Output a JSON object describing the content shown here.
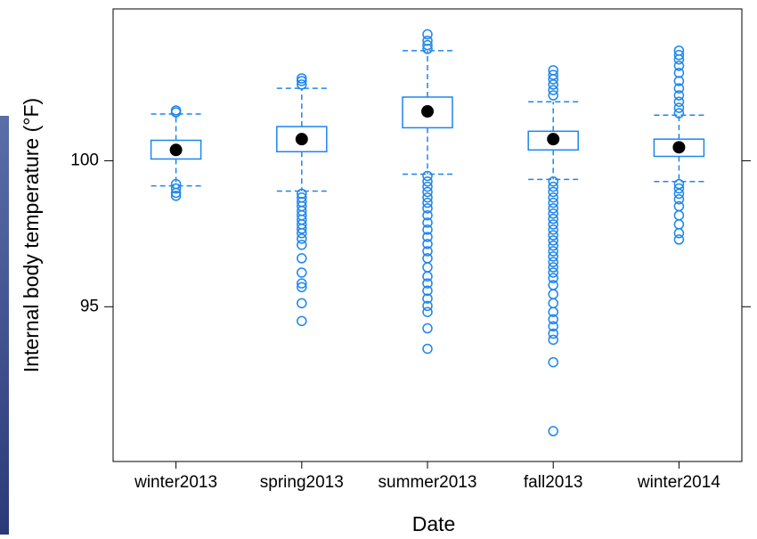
{
  "chart_data": {
    "type": "box",
    "x_label": "Date",
    "y_label": "Internal body temperature (°F)",
    "categories": [
      "winter2013",
      "spring2013",
      "summer2013",
      "fall2013",
      "winter2014"
    ],
    "color": "#1c86ee",
    "median_color": "#000000",
    "ylim": [
      89.7,
      105.2
    ],
    "yticks": [
      95,
      100
    ],
    "boxes": [
      {
        "whislo": 99.14,
        "q1": 100.06,
        "med": 100.37,
        "q3": 100.7,
        "whishi": 101.6,
        "fliers": [
          101.72,
          101.66,
          99.2,
          99.05,
          98.9,
          98.8
        ]
      },
      {
        "whislo": 98.96,
        "q1": 100.31,
        "med": 100.74,
        "q3": 101.17,
        "whishi": 102.48,
        "fliers": [
          102.82,
          102.73,
          102.61,
          98.87,
          98.74,
          98.59,
          98.44,
          98.28,
          98.13,
          97.98,
          97.82,
          97.67,
          97.52,
          97.33,
          97.12,
          96.66,
          96.17,
          95.8,
          95.67,
          95.12,
          94.51
        ]
      },
      {
        "whislo": 99.54,
        "q1": 101.13,
        "med": 101.69,
        "q3": 102.18,
        "whishi": 103.77,
        "fliers": [
          104.33,
          104.11,
          103.96,
          103.83,
          99.48,
          99.29,
          99.11,
          98.93,
          98.74,
          98.56,
          98.37,
          98.13,
          97.88,
          97.64,
          97.39,
          97.15,
          96.9,
          96.66,
          96.35,
          96.04,
          95.8,
          95.55,
          95.28,
          95.03,
          94.82,
          94.26,
          93.56
        ]
      },
      {
        "whislo": 99.36,
        "q1": 100.37,
        "med": 100.74,
        "q3": 101.01,
        "whishi": 102.02,
        "fliers": [
          103.1,
          102.94,
          102.79,
          102.61,
          102.42,
          102.24,
          99.29,
          99.11,
          98.93,
          98.74,
          98.56,
          98.37,
          98.19,
          98.01,
          97.82,
          97.64,
          97.45,
          97.27,
          97.09,
          96.9,
          96.72,
          96.53,
          96.35,
          96.17,
          95.98,
          95.74,
          95.43,
          95.12,
          94.82,
          94.57,
          94.33,
          94.08,
          93.87,
          93.1,
          90.74
        ]
      },
      {
        "whislo": 99.29,
        "q1": 100.15,
        "med": 100.46,
        "q3": 100.74,
        "whishi": 101.56,
        "fliers": [
          103.77,
          103.62,
          103.47,
          103.25,
          103.01,
          102.73,
          102.48,
          102.24,
          102.02,
          101.81,
          101.63,
          99.2,
          99.05,
          98.87,
          98.68,
          98.44,
          98.13,
          97.82,
          97.52,
          97.3
        ]
      }
    ]
  }
}
